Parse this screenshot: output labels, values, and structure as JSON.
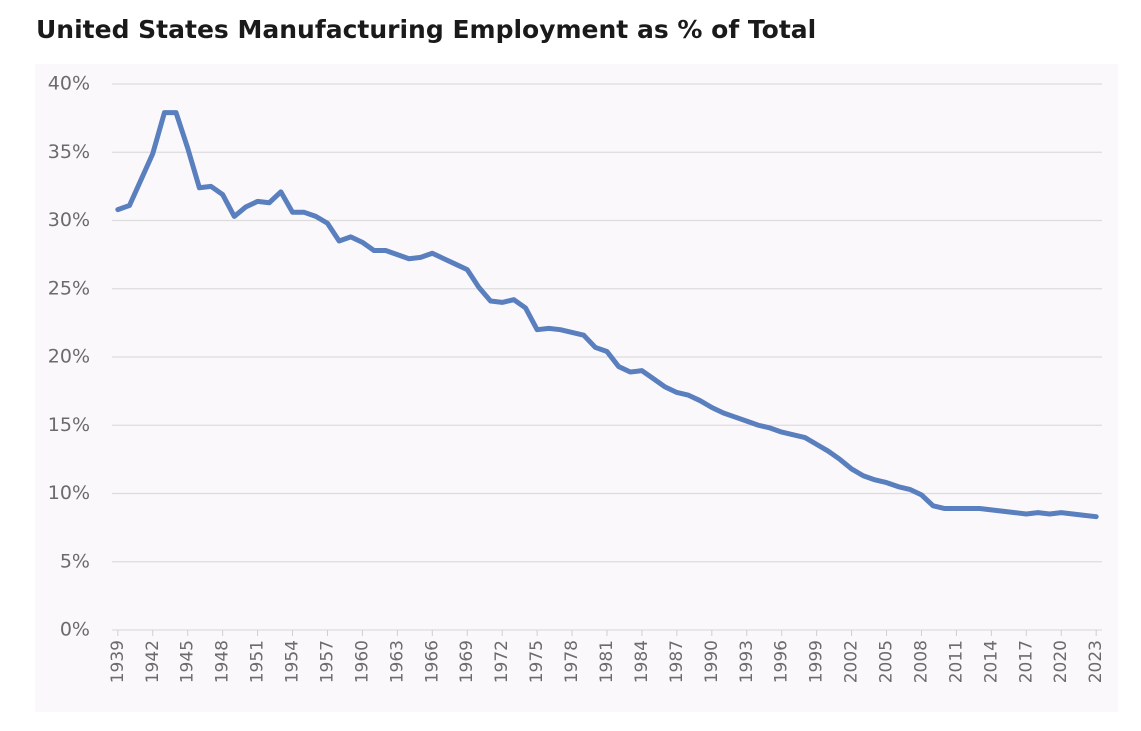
{
  "chart_data": {
    "type": "line",
    "title": "United States Manufacturing Employment as % of Total",
    "x": [
      1939,
      1940,
      1941,
      1942,
      1943,
      1944,
      1945,
      1946,
      1947,
      1948,
      1949,
      1950,
      1951,
      1952,
      1953,
      1954,
      1955,
      1956,
      1957,
      1958,
      1959,
      1960,
      1961,
      1962,
      1963,
      1964,
      1965,
      1966,
      1967,
      1968,
      1969,
      1970,
      1971,
      1972,
      1973,
      1974,
      1975,
      1976,
      1977,
      1978,
      1979,
      1980,
      1981,
      1982,
      1983,
      1984,
      1985,
      1986,
      1987,
      1988,
      1989,
      1990,
      1991,
      1992,
      1993,
      1994,
      1995,
      1996,
      1997,
      1998,
      1999,
      2000,
      2001,
      2002,
      2003,
      2004,
      2005,
      2006,
      2007,
      2008,
      2009,
      2010,
      2011,
      2012,
      2013,
      2014,
      2015,
      2016,
      2017,
      2018,
      2019,
      2020,
      2021,
      2022,
      2023
    ],
    "values": [
      30.8,
      31.1,
      33.0,
      34.9,
      37.9,
      37.9,
      35.3,
      32.4,
      32.5,
      31.9,
      30.3,
      31.0,
      31.4,
      31.3,
      32.1,
      30.6,
      30.6,
      30.3,
      29.8,
      28.5,
      28.8,
      28.4,
      27.8,
      27.8,
      27.5,
      27.2,
      27.3,
      27.6,
      27.2,
      26.8,
      26.4,
      25.1,
      24.1,
      24.0,
      24.2,
      23.6,
      22.0,
      22.1,
      22.0,
      21.8,
      21.6,
      20.7,
      20.4,
      19.3,
      18.9,
      19.0,
      18.4,
      17.8,
      17.4,
      17.2,
      16.8,
      16.3,
      15.9,
      15.6,
      15.3,
      15.0,
      14.8,
      14.5,
      14.3,
      14.1,
      13.6,
      13.1,
      12.5,
      11.8,
      11.3,
      11.0,
      10.8,
      10.5,
      10.3,
      9.9,
      9.1,
      8.9,
      8.9,
      8.9,
      8.9,
      8.8,
      8.7,
      8.6,
      8.5,
      8.6,
      8.5,
      8.6,
      8.5,
      8.4,
      8.3
    ],
    "color": "#5a7fbe",
    "xlim": [
      1938.5,
      2023.5
    ],
    "xticks": [
      1939,
      1942,
      1945,
      1948,
      1951,
      1954,
      1957,
      1960,
      1963,
      1966,
      1969,
      1972,
      1975,
      1978,
      1981,
      1984,
      1987,
      1990,
      1993,
      1996,
      1999,
      2002,
      2005,
      2008,
      2011,
      2014,
      2017,
      2020,
      2023
    ],
    "ylim": [
      0,
      40
    ],
    "yticks": [
      {
        "value": 0,
        "label": "0%"
      },
      {
        "value": 5,
        "label": "5%"
      },
      {
        "value": 10,
        "label": "10%"
      },
      {
        "value": 15,
        "label": "15%"
      },
      {
        "value": 20,
        "label": "20%"
      },
      {
        "value": 25,
        "label": "25%"
      },
      {
        "value": 30,
        "label": "30%"
      },
      {
        "value": 35,
        "label": "35%"
      },
      {
        "value": 40,
        "label": "40%"
      }
    ],
    "grid": true
  }
}
